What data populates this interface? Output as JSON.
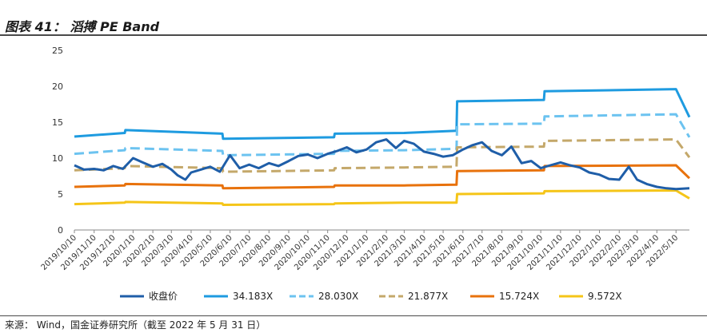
{
  "header": {
    "title": "图表 41： 滔搏 PE Band"
  },
  "footer": {
    "source": "来源： Wind，国金证券研究所（截至 2022 年 5 月 31 日）"
  },
  "chart_data": {
    "type": "line",
    "title": "滔搏 PE Band",
    "ylim": [
      0,
      25
    ],
    "y_ticks": [
      "0",
      "5",
      "10",
      "15",
      "20",
      "25"
    ],
    "grid": false,
    "legend_position": "bottom",
    "x_tick_labels": [
      "2019/10/10",
      "2019/11/10",
      "2019/12/10",
      "2020/1/10",
      "2020/2/10",
      "2020/3/10",
      "2020/4/10",
      "2020/5/10",
      "2020/6/10",
      "2020/7/10",
      "2020/8/10",
      "2020/9/10",
      "2020/10/10",
      "2020/11/10",
      "2020/12/10",
      "2021/1/10",
      "2021/2/10",
      "2021/3/10",
      "2021/4/10",
      "2021/5/10",
      "2021/6/10",
      "2021/7/10",
      "2021/8/10",
      "2021/9/10",
      "2021/10/10",
      "2021/11/10",
      "2021/12/10",
      "2022/1/10",
      "2022/2/10",
      "2022/3/10",
      "2022/4/10",
      "2022/5/10"
    ],
    "x_range": [
      "2019/10/10",
      "2022/5/31"
    ],
    "series": [
      {
        "name": "收盘价",
        "color": "#1f5ea8",
        "style": "solid",
        "width": 3,
        "x": [
          "2019/10/10",
          "2019/10/25",
          "2019/11/10",
          "2019/11/25",
          "2019/12/10",
          "2019/12/25",
          "2020/1/10",
          "2020/1/25",
          "2020/2/10",
          "2020/2/25",
          "2020/3/10",
          "2020/3/20",
          "2020/4/1",
          "2020/4/10",
          "2020/4/25",
          "2020/5/10",
          "2020/5/25",
          "2020/6/10",
          "2020/6/25",
          "2020/7/10",
          "2020/7/25",
          "2020/8/10",
          "2020/8/25",
          "2020/9/10",
          "2020/9/25",
          "2020/10/10",
          "2020/10/25",
          "2020/11/10",
          "2020/11/25",
          "2020/12/10",
          "2020/12/25",
          "2021/1/10",
          "2021/1/25",
          "2021/2/10",
          "2021/2/25",
          "2021/3/10",
          "2021/3/25",
          "2021/4/10",
          "2021/4/25",
          "2021/5/10",
          "2021/5/25",
          "2021/6/10",
          "2021/6/25",
          "2021/7/10",
          "2021/7/25",
          "2021/8/10",
          "2021/8/25",
          "2021/9/10",
          "2021/9/25",
          "2021/10/10",
          "2021/10/25",
          "2021/11/10",
          "2021/11/25",
          "2021/12/10",
          "2021/12/25",
          "2022/1/10",
          "2022/1/25",
          "2022/2/10",
          "2022/2/25",
          "2022/3/10",
          "2022/3/25",
          "2022/4/10",
          "2022/4/25",
          "2022/5/10",
          "2022/5/31"
        ],
        "values": [
          9.0,
          8.4,
          8.5,
          8.3,
          8.9,
          8.5,
          10.0,
          9.4,
          8.8,
          9.2,
          8.4,
          7.6,
          7.0,
          8.0,
          8.4,
          8.8,
          8.1,
          10.4,
          8.6,
          9.1,
          8.6,
          9.3,
          8.9,
          9.6,
          10.3,
          10.5,
          10.0,
          10.6,
          11.0,
          11.5,
          10.8,
          11.2,
          12.2,
          12.6,
          11.4,
          12.4,
          12.0,
          10.9,
          10.6,
          10.2,
          10.4,
          11.2,
          11.8,
          12.2,
          11.0,
          10.4,
          11.6,
          9.3,
          9.6,
          8.6,
          9.0,
          9.4,
          9.0,
          8.7,
          8.0,
          7.7,
          7.1,
          7.0,
          8.8,
          7.0,
          6.4,
          6.0,
          5.8,
          5.7,
          5.8
        ]
      },
      {
        "name": "34.183X",
        "color": "#1e9be0",
        "style": "solid",
        "width": 3,
        "x": [
          "2019/10/10",
          "2019/12/28",
          "2019/12/29",
          "2020/5/29",
          "2020/5/30",
          "2020/11/20",
          "2020/11/21",
          "2021/3/10",
          "2021/5/31",
          "2021/6/1",
          "2021/10/15",
          "2021/10/16",
          "2022/5/10",
          "2022/5/31"
        ],
        "values": [
          13.0,
          13.5,
          13.9,
          13.4,
          12.7,
          12.9,
          13.4,
          13.5,
          13.8,
          17.9,
          18.1,
          19.3,
          19.6,
          15.7
        ]
      },
      {
        "name": "28.030X",
        "color": "#6cc3f0",
        "style": "dash",
        "width": 3,
        "x": [
          "2019/10/10",
          "2019/12/28",
          "2019/12/29",
          "2020/5/29",
          "2020/5/30",
          "2020/11/20",
          "2020/11/21",
          "2021/3/10",
          "2021/5/31",
          "2021/6/1",
          "2021/10/15",
          "2021/10/16",
          "2022/5/10",
          "2022/5/31"
        ],
        "values": [
          10.6,
          11.1,
          11.4,
          11.0,
          10.4,
          10.6,
          11.0,
          11.1,
          11.3,
          14.7,
          14.8,
          15.8,
          16.1,
          12.9
        ]
      },
      {
        "name": "21.877X",
        "color": "#c4a86a",
        "style": "dash",
        "width": 3,
        "x": [
          "2019/10/10",
          "2019/12/28",
          "2019/12/29",
          "2020/5/29",
          "2020/5/30",
          "2020/11/20",
          "2020/11/21",
          "2021/3/10",
          "2021/5/31",
          "2021/6/1",
          "2021/10/15",
          "2021/10/16",
          "2022/5/10",
          "2022/5/31"
        ],
        "values": [
          8.3,
          8.6,
          8.9,
          8.6,
          8.1,
          8.3,
          8.6,
          8.7,
          8.8,
          11.5,
          11.6,
          12.4,
          12.6,
          10.1
        ]
      },
      {
        "name": "15.724X",
        "color": "#e8720c",
        "style": "solid",
        "width": 3,
        "x": [
          "2019/10/10",
          "2019/12/28",
          "2019/12/29",
          "2020/5/29",
          "2020/5/30",
          "2020/11/20",
          "2020/11/21",
          "2021/3/10",
          "2021/5/31",
          "2021/6/1",
          "2021/10/15",
          "2021/10/16",
          "2022/5/10",
          "2022/5/31"
        ],
        "values": [
          6.0,
          6.2,
          6.4,
          6.2,
          5.8,
          6.0,
          6.2,
          6.2,
          6.3,
          8.2,
          8.3,
          8.9,
          9.0,
          7.2
        ]
      },
      {
        "name": "9.572X",
        "color": "#f5c518",
        "style": "solid",
        "width": 3,
        "x": [
          "2019/10/10",
          "2019/12/28",
          "2019/12/29",
          "2020/5/29",
          "2020/5/30",
          "2020/11/20",
          "2020/11/21",
          "2021/3/10",
          "2021/5/31",
          "2021/6/1",
          "2021/10/15",
          "2021/10/16",
          "2022/5/10",
          "2022/5/31"
        ],
        "values": [
          3.6,
          3.8,
          3.9,
          3.7,
          3.5,
          3.6,
          3.7,
          3.8,
          3.8,
          5.0,
          5.1,
          5.4,
          5.5,
          4.4
        ]
      }
    ]
  }
}
